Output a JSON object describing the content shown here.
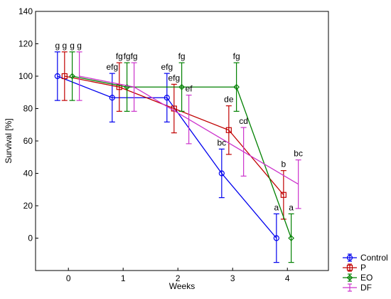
{
  "chart_data": {
    "type": "line",
    "xlabel": "Weeks",
    "ylabel": "Survival [%]",
    "xlim": [
      -0.6,
      4.75
    ],
    "ylim": [
      -20,
      140
    ],
    "x_ticks": [
      0,
      1,
      2,
      3,
      4
    ],
    "y_ticks": [
      0,
      20,
      40,
      60,
      80,
      100,
      120,
      140
    ],
    "grid": false,
    "legend_position": "bottom-right",
    "series": [
      {
        "name": "Control",
        "marker": "circle",
        "color": "#0000ee",
        "offset": -0.2,
        "x": [
          0,
          1,
          2,
          3,
          4
        ],
        "y": [
          100,
          86.7,
          86.7,
          40,
          0
        ],
        "err": [
          15,
          15,
          15,
          15,
          15
        ],
        "labels": [
          "g",
          "efg",
          "efg",
          "bc",
          "a"
        ]
      },
      {
        "name": "P",
        "marker": "square",
        "color": "#c00000",
        "offset": -0.07,
        "x": [
          0,
          1,
          2,
          3,
          4
        ],
        "y": [
          100,
          93.3,
          80,
          66.7,
          26.7
        ],
        "err": [
          15,
          15,
          15,
          15,
          15
        ],
        "labels": [
          "g",
          "fg",
          "efg",
          "de",
          "b"
        ]
      },
      {
        "name": "EO",
        "marker": "diamond",
        "color": "#008000",
        "offset": 0.07,
        "x": [
          0,
          1,
          2,
          3,
          4
        ],
        "y": [
          100,
          93.3,
          93.3,
          93.3,
          0
        ],
        "err": [
          15,
          15,
          15,
          15,
          15
        ],
        "labels": [
          "g",
          "fg",
          "fg",
          "fg",
          "a"
        ]
      },
      {
        "name": "DF",
        "marker": "none",
        "color": "#cc33cc",
        "offset": 0.2,
        "x": [
          0,
          1,
          2,
          3,
          4
        ],
        "y": [
          100,
          93.3,
          73.3,
          53.3,
          33.3
        ],
        "err": [
          15,
          15,
          15,
          15,
          15
        ],
        "labels": [
          "g",
          "fg",
          "ef",
          "cd",
          "bc"
        ]
      }
    ]
  }
}
